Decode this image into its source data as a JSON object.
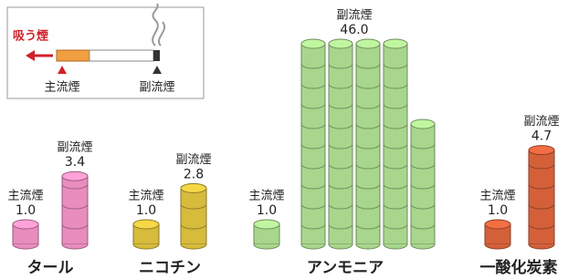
{
  "chart_data": {
    "type": "cylinder",
    "annotation": "吸う煙",
    "categories": [
      "タール",
      "ニコチン",
      "アンモニア",
      "一酸化炭素"
    ],
    "colors": [
      "#e88dbd",
      "#d6bb3c",
      "#a8d68c",
      "#d4603a"
    ],
    "series": [
      {
        "name": "主流煙",
        "values": [
          1.0,
          1.0,
          1.0,
          1.0
        ],
        "value_labels": [
          "1.0",
          "1.0",
          "1.0",
          "1.0"
        ]
      },
      {
        "name": "副流煙",
        "values": [
          3.4,
          2.8,
          46.0,
          4.7
        ],
        "value_labels": [
          "3.4",
          "2.8",
          "46.0",
          "4.7"
        ]
      }
    ]
  }
}
